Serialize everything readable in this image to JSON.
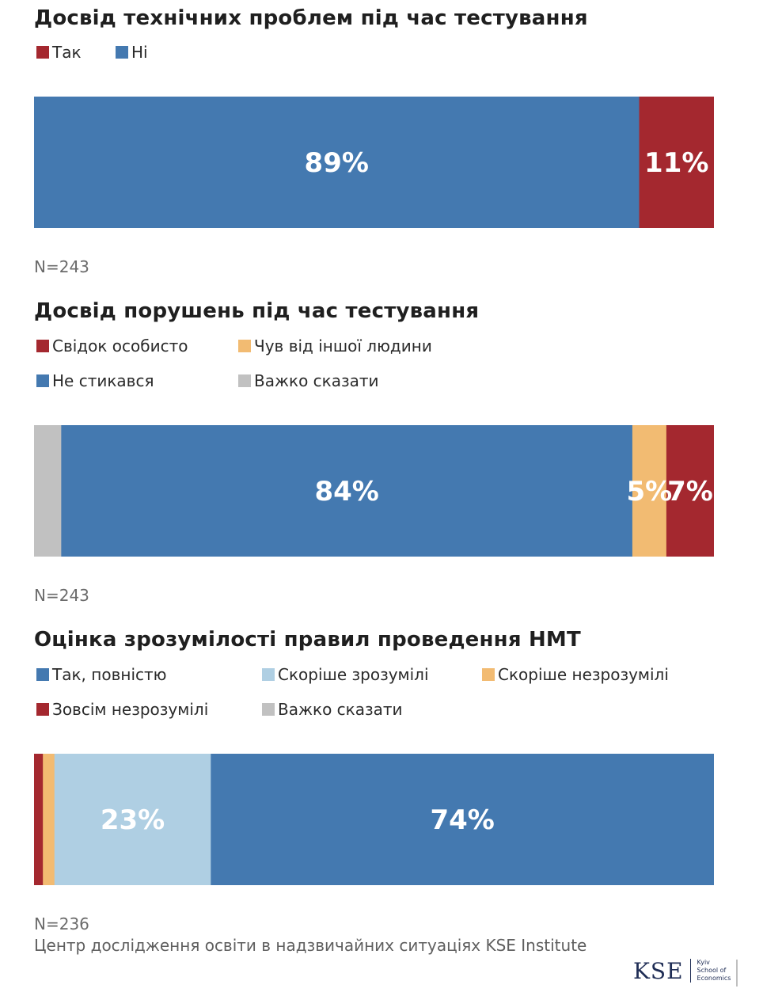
{
  "colors": {
    "yes_red": "#a4282f",
    "no_blue": "#4479b0",
    "orange": "#f2bb72",
    "light_blue": "#afcfe3",
    "gray": "#c1c1c1"
  },
  "chart_data": [
    {
      "type": "bar",
      "orientation": "horizontal-stacked-100",
      "title": "Досвід технічних проблем під час тестування",
      "legend": [
        "Так",
        "Ні"
      ],
      "series": [
        {
          "name": "Ні",
          "value": 89,
          "label": "89%",
          "color": "#4479b0"
        },
        {
          "name": "Так",
          "value": 11,
          "label": "11%",
          "color": "#a4282f"
        }
      ],
      "n": "N=243"
    },
    {
      "type": "bar",
      "orientation": "horizontal-stacked-100",
      "title": "Досвід порушень під час тестування",
      "legend": [
        "Свідок особисто",
        "Чув від іншої людини",
        "Не стикався",
        "Важко сказати"
      ],
      "series": [
        {
          "name": "Важко сказати",
          "value": 4,
          "label": "",
          "color": "#c1c1c1"
        },
        {
          "name": "Не стикався",
          "value": 84,
          "label": "84%",
          "color": "#4479b0"
        },
        {
          "name": "Чув від іншої людини",
          "value": 5,
          "label": "5%",
          "color": "#f2bb72"
        },
        {
          "name": "Свідок особисто",
          "value": 7,
          "label": "7%",
          "color": "#a4282f"
        }
      ],
      "n": "N=243"
    },
    {
      "type": "bar",
      "orientation": "horizontal-stacked-100",
      "title": "Оцінка зрозумілості правил проведення НМТ",
      "legend": [
        "Так, повністю",
        "Скоріше зрозумілі",
        "Скоріше незрозумілі",
        "Зовсім незрозумілі",
        "Важко сказати"
      ],
      "series": [
        {
          "name": "Зовсім незрозумілі",
          "value": 1.3,
          "label": "",
          "color": "#a4282f"
        },
        {
          "name": "Скоріше незрозумілі",
          "value": 1.7,
          "label": "",
          "color": "#f2bb72"
        },
        {
          "name": "Скоріше зрозумілі",
          "value": 23,
          "label": "23%",
          "color": "#afcfe3"
        },
        {
          "name": "Так, повністю",
          "value": 74,
          "label": "74%",
          "color": "#4479b0"
        }
      ],
      "n": "N=236"
    }
  ],
  "source": "Центр дослідження освіти в надзвичайних ситуаціях KSE Institute",
  "logo": {
    "main": "KSE",
    "sub1": "Kyiv",
    "sub2": "School of",
    "sub3": "Economics"
  }
}
